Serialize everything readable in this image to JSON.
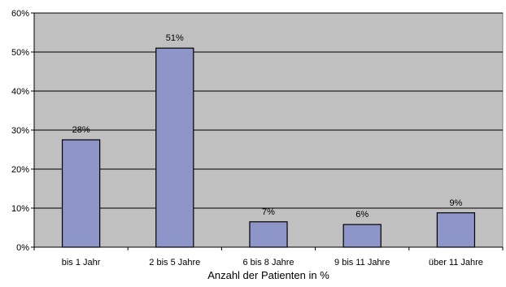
{
  "chart_data": {
    "type": "bar",
    "title": "",
    "xlabel": "Anzahl der Patienten in %",
    "ylabel": "",
    "categories": [
      "bis 1 Jahr",
      "2 bis 5 Jahre",
      "6 bis 8 Jahre",
      "9 bis 11 Jahre",
      "über 11 Jahre"
    ],
    "values": [
      27.5,
      51,
      6.5,
      5.8,
      8.8
    ],
    "data_labels": [
      "28%",
      "51%",
      "7%",
      "6%",
      "9%"
    ],
    "ylim": [
      0,
      60
    ],
    "yticks": [
      0,
      10,
      20,
      30,
      40,
      50,
      60
    ],
    "ytick_labels": [
      "0%",
      "10%",
      "20%",
      "30%",
      "40%",
      "50%",
      "60%"
    ],
    "grid": true,
    "legend": "none",
    "colors": {
      "plot_background": "#c0c0c0",
      "bar_fill": "#8e96c9",
      "bar_stroke": "#000000",
      "gridline": "#000000"
    }
  }
}
